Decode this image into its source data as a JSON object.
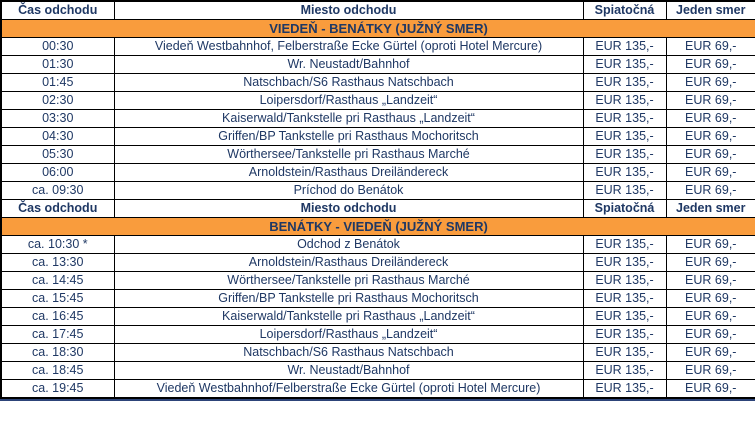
{
  "colors": {
    "text_navy": "#1F3864",
    "banner_orange": "#F99C3D",
    "grid_border": "#000000",
    "bottom_accent_line": "#2D4479",
    "row_background": "#FFFFFF"
  },
  "columns": [
    "Čas odchodu",
    "Miesto odchodu",
    "Spiatočná",
    "Jeden smer"
  ],
  "sections": [
    {
      "banner": "VIEDEŇ - BENÁTKY (JUŽNÝ SMER)",
      "rows": [
        {
          "time": "00:30",
          "place": "Viedeň Westbahnhof, Felberstraße Ecke Gürtel (oproti Hotel Mercure)",
          "return_fare": "EUR 135,-",
          "one_way_fare": "EUR 69,-"
        },
        {
          "time": "01:30",
          "place": "Wr. Neustadt/Bahnhof",
          "return_fare": "EUR 135,-",
          "one_way_fare": "EUR 69,-"
        },
        {
          "time": "01:45",
          "place": "Natschbach/S6 Rasthaus Natschbach",
          "return_fare": "EUR 135,-",
          "one_way_fare": "EUR 69,-"
        },
        {
          "time": "02:30",
          "place": "Loipersdorf/Rasthaus „Landzeit“",
          "return_fare": "EUR 135,-",
          "one_way_fare": "EUR 69,-"
        },
        {
          "time": "03:30",
          "place": "Kaiserwald/Tankstelle pri Rasthaus „Landzeit“",
          "return_fare": "EUR 135,-",
          "one_way_fare": "EUR 69,-"
        },
        {
          "time": "04:30",
          "place": "Griffen/BP Tankstelle pri Rasthaus Mochoritsch",
          "return_fare": "EUR 135,-",
          "one_way_fare": "EUR 69,-"
        },
        {
          "time": "05:30",
          "place": "Wörthersee/Tankstelle pri Rasthaus Marché",
          "return_fare": "EUR 135,-",
          "one_way_fare": "EUR 69,-"
        },
        {
          "time": "06:00",
          "place": "Arnoldstein/Rasthaus Dreiländereck",
          "return_fare": "EUR 135,-",
          "one_way_fare": "EUR 69,-"
        },
        {
          "time": "ca. 09:30",
          "place": "Príchod do Benátok",
          "return_fare": "EUR 135,-",
          "one_way_fare": "EUR 69,-"
        }
      ]
    },
    {
      "banner": "BENÁTKY - VIEDEŇ (JUŽNÝ SMER)",
      "rows": [
        {
          "time": "ca. 10:30 *",
          "place": "Odchod z Benátok",
          "return_fare": "EUR 135,-",
          "one_way_fare": "EUR 69,-"
        },
        {
          "time": "ca. 13:30",
          "place": "Arnoldstein/Rasthaus Dreiländereck",
          "return_fare": "EUR 135,-",
          "one_way_fare": "EUR 69,-"
        },
        {
          "time": "ca. 14:45",
          "place": "Wörthersee/Tankstelle pri Rasthaus Marché",
          "return_fare": "EUR 135,-",
          "one_way_fare": "EUR 69,-"
        },
        {
          "time": "ca. 15:45",
          "place": "Griffen/BP Tankstelle pri Rasthaus Mochoritsch",
          "return_fare": "EUR 135,-",
          "one_way_fare": "EUR 69,-"
        },
        {
          "time": "ca. 16:45",
          "place": "Kaiserwald/Tankstelle pri Rasthaus „Landzeit“",
          "return_fare": "EUR 135,-",
          "one_way_fare": "EUR 69,-"
        },
        {
          "time": "ca. 17:45",
          "place": "Loipersdorf/Rasthaus „Landzeit“",
          "return_fare": "EUR 135,-",
          "one_way_fare": "EUR 69,-"
        },
        {
          "time": "ca. 18:30",
          "place": "Natschbach/S6 Rasthaus Natschbach",
          "return_fare": "EUR 135,-",
          "one_way_fare": "EUR 69,-"
        },
        {
          "time": "ca. 18:45",
          "place": "Wr. Neustadt/Bahnhof",
          "return_fare": "EUR 135,-",
          "one_way_fare": "EUR 69,-"
        },
        {
          "time": "ca. 19:45",
          "place": "Viedeň Westbahnhof/Felberstraße Ecke Gürtel (oproti Hotel Mercure)",
          "return_fare": "EUR 135,-",
          "one_way_fare": "EUR 69,-"
        }
      ]
    }
  ]
}
